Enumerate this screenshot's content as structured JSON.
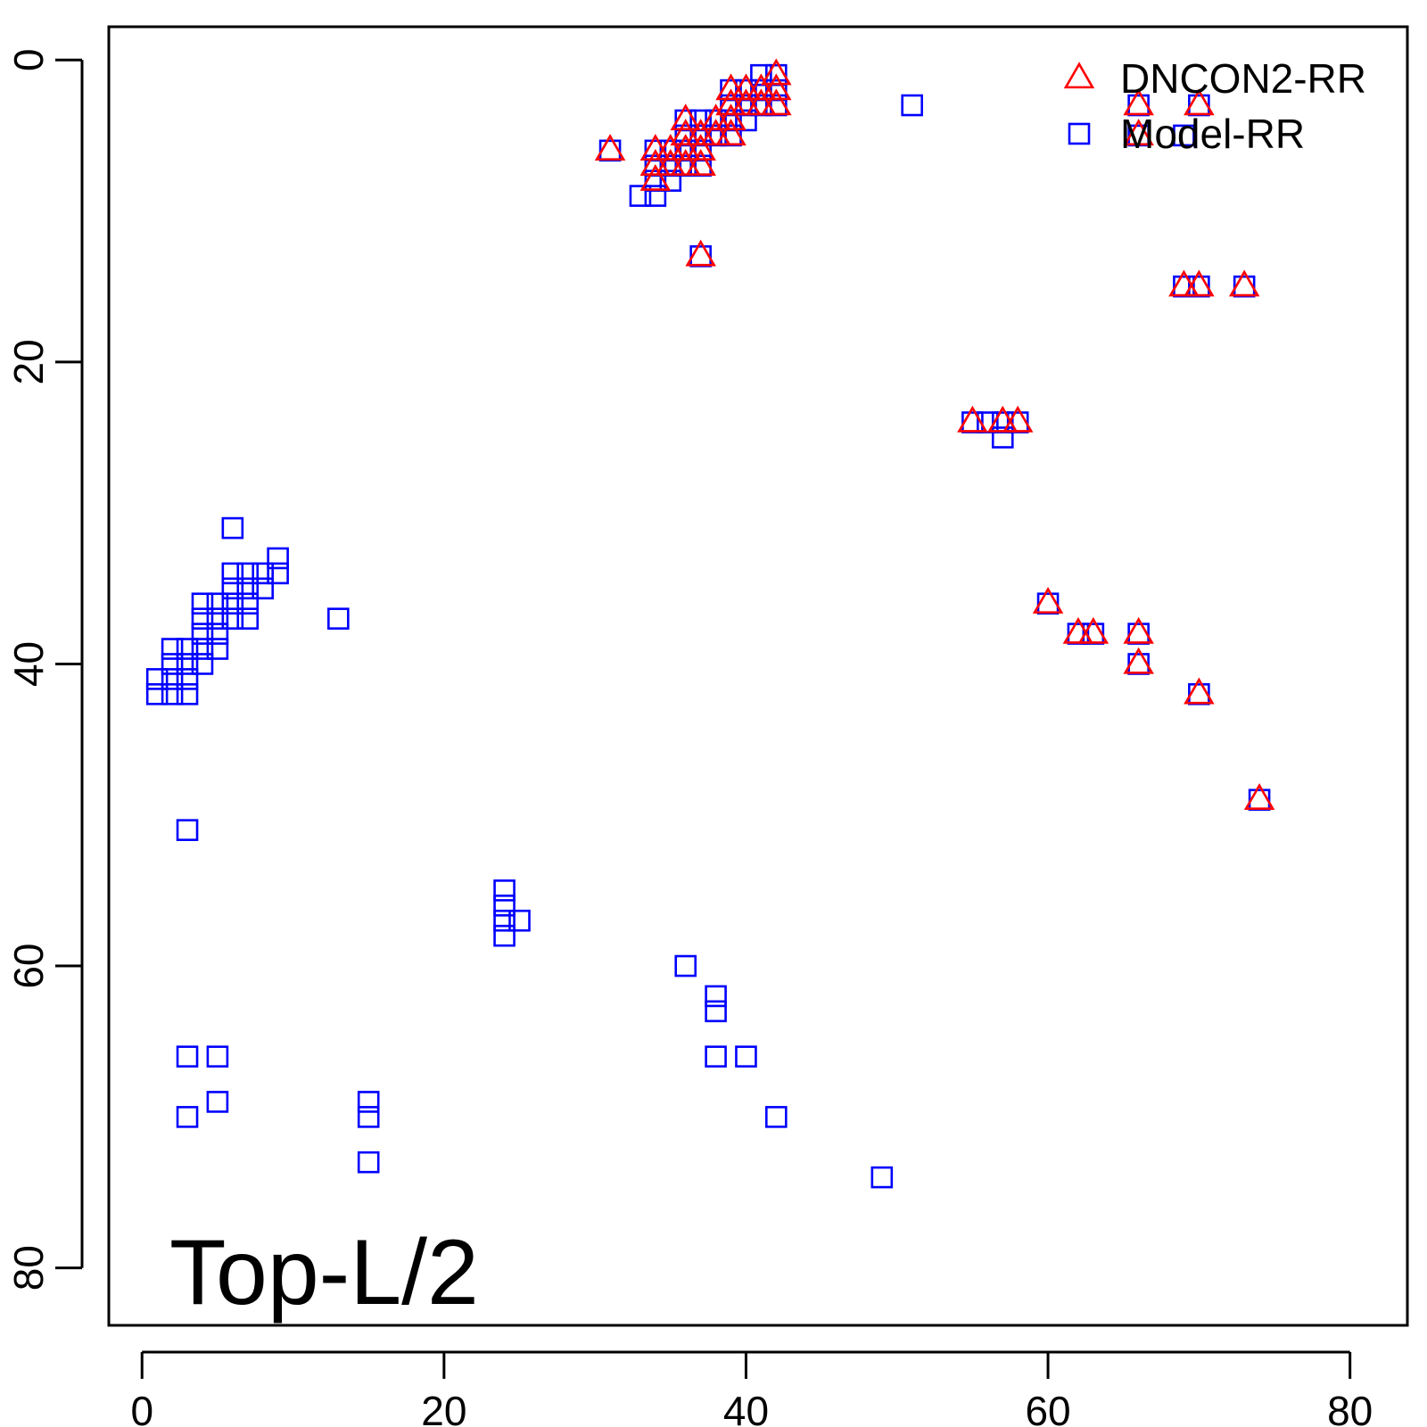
{
  "chart_data": {
    "type": "scatter",
    "title": "",
    "xlabel": "",
    "ylabel": "",
    "xlim": [
      -2.2,
      83.8
    ],
    "ylim": [
      -2.2,
      83.8
    ],
    "y_reversed": true,
    "x_ticks": [
      0,
      20,
      40,
      60,
      80
    ],
    "y_ticks": [
      0,
      20,
      40,
      60,
      80
    ],
    "x_tick_labels": [
      "0",
      "20",
      "40",
      "60",
      "80"
    ],
    "y_tick_labels": [
      "0",
      "20",
      "40",
      "60",
      "80"
    ],
    "grid": false,
    "legend_position": "top-right",
    "annotation": "Top-L/2",
    "series": [
      {
        "name": "DNCON2-RR",
        "marker": "triangle",
        "color": "#ff0000",
        "points": [
          [
            31,
            6
          ],
          [
            34,
            6
          ],
          [
            34,
            7
          ],
          [
            34,
            8
          ],
          [
            35,
            6
          ],
          [
            35,
            7
          ],
          [
            36,
            4
          ],
          [
            36,
            5
          ],
          [
            36,
            6
          ],
          [
            36,
            7
          ],
          [
            37,
            5
          ],
          [
            37,
            6
          ],
          [
            37,
            7
          ],
          [
            38,
            4
          ],
          [
            38,
            5
          ],
          [
            39,
            2
          ],
          [
            39,
            3
          ],
          [
            39,
            4
          ],
          [
            39,
            5
          ],
          [
            40,
            2
          ],
          [
            40,
            3
          ],
          [
            41,
            2
          ],
          [
            41,
            3
          ],
          [
            42,
            1
          ],
          [
            42,
            2
          ],
          [
            42,
            3
          ],
          [
            37,
            13
          ],
          [
            55,
            24
          ],
          [
            57,
            24
          ],
          [
            58,
            24
          ],
          [
            60,
            36
          ],
          [
            62,
            38
          ],
          [
            63,
            38
          ],
          [
            66,
            3
          ],
          [
            66,
            5
          ],
          [
            66,
            38
          ],
          [
            66,
            40
          ],
          [
            69,
            15
          ],
          [
            70,
            3
          ],
          [
            70,
            15
          ],
          [
            73,
            15
          ],
          [
            70,
            42
          ],
          [
            74,
            49
          ]
        ]
      },
      {
        "name": "Model-RR",
        "marker": "square",
        "color": "#0000ff",
        "points": [
          [
            31,
            6
          ],
          [
            33,
            9
          ],
          [
            34,
            6
          ],
          [
            34,
            7
          ],
          [
            34,
            8
          ],
          [
            34,
            9
          ],
          [
            35,
            6
          ],
          [
            35,
            7
          ],
          [
            35,
            8
          ],
          [
            36,
            4
          ],
          [
            36,
            5
          ],
          [
            36,
            6
          ],
          [
            36,
            7
          ],
          [
            37,
            4
          ],
          [
            37,
            5
          ],
          [
            37,
            6
          ],
          [
            37,
            7
          ],
          [
            38,
            4
          ],
          [
            38,
            5
          ],
          [
            39,
            2
          ],
          [
            39,
            3
          ],
          [
            39,
            4
          ],
          [
            39,
            5
          ],
          [
            40,
            2
          ],
          [
            40,
            3
          ],
          [
            40,
            4
          ],
          [
            41,
            1
          ],
          [
            41,
            2
          ],
          [
            41,
            3
          ],
          [
            42,
            1
          ],
          [
            42,
            2
          ],
          [
            42,
            3
          ],
          [
            37,
            13
          ],
          [
            51,
            3
          ],
          [
            55,
            24
          ],
          [
            56,
            24
          ],
          [
            57,
            24
          ],
          [
            57,
            25
          ],
          [
            58,
            24
          ],
          [
            60,
            36
          ],
          [
            62,
            38
          ],
          [
            63,
            38
          ],
          [
            66,
            3
          ],
          [
            66,
            5
          ],
          [
            66,
            38
          ],
          [
            66,
            40
          ],
          [
            69,
            5
          ],
          [
            69,
            15
          ],
          [
            70,
            3
          ],
          [
            70,
            15
          ],
          [
            73,
            15
          ],
          [
            70,
            42
          ],
          [
            74,
            49
          ],
          [
            6,
            31
          ],
          [
            6,
            34
          ],
          [
            6,
            35
          ],
          [
            6,
            36
          ],
          [
            7,
            34
          ],
          [
            7,
            35
          ],
          [
            7,
            36
          ],
          [
            8,
            34
          ],
          [
            8,
            35
          ],
          [
            9,
            33
          ],
          [
            9,
            34
          ],
          [
            4,
            36
          ],
          [
            4,
            37
          ],
          [
            4,
            38
          ],
          [
            4,
            39
          ],
          [
            4,
            40
          ],
          [
            5,
            36
          ],
          [
            5,
            37
          ],
          [
            5,
            38
          ],
          [
            5,
            39
          ],
          [
            6,
            37
          ],
          [
            7,
            37
          ],
          [
            2,
            39
          ],
          [
            2,
            40
          ],
          [
            2,
            41
          ],
          [
            2,
            42
          ],
          [
            3,
            39
          ],
          [
            3,
            40
          ],
          [
            3,
            41
          ],
          [
            3,
            42
          ],
          [
            1,
            41
          ],
          [
            1,
            42
          ],
          [
            13,
            37
          ],
          [
            3,
            51
          ],
          [
            3,
            66
          ],
          [
            5,
            66
          ],
          [
            3,
            70
          ],
          [
            5,
            69
          ],
          [
            15,
            69
          ],
          [
            15,
            70
          ],
          [
            15,
            73
          ],
          [
            24,
            55
          ],
          [
            24,
            56
          ],
          [
            24,
            57
          ],
          [
            24,
            58
          ],
          [
            25,
            57
          ],
          [
            36,
            60
          ],
          [
            38,
            62
          ],
          [
            38,
            63
          ],
          [
            38,
            66
          ],
          [
            40,
            66
          ],
          [
            42,
            70
          ],
          [
            49,
            74
          ]
        ]
      }
    ]
  }
}
